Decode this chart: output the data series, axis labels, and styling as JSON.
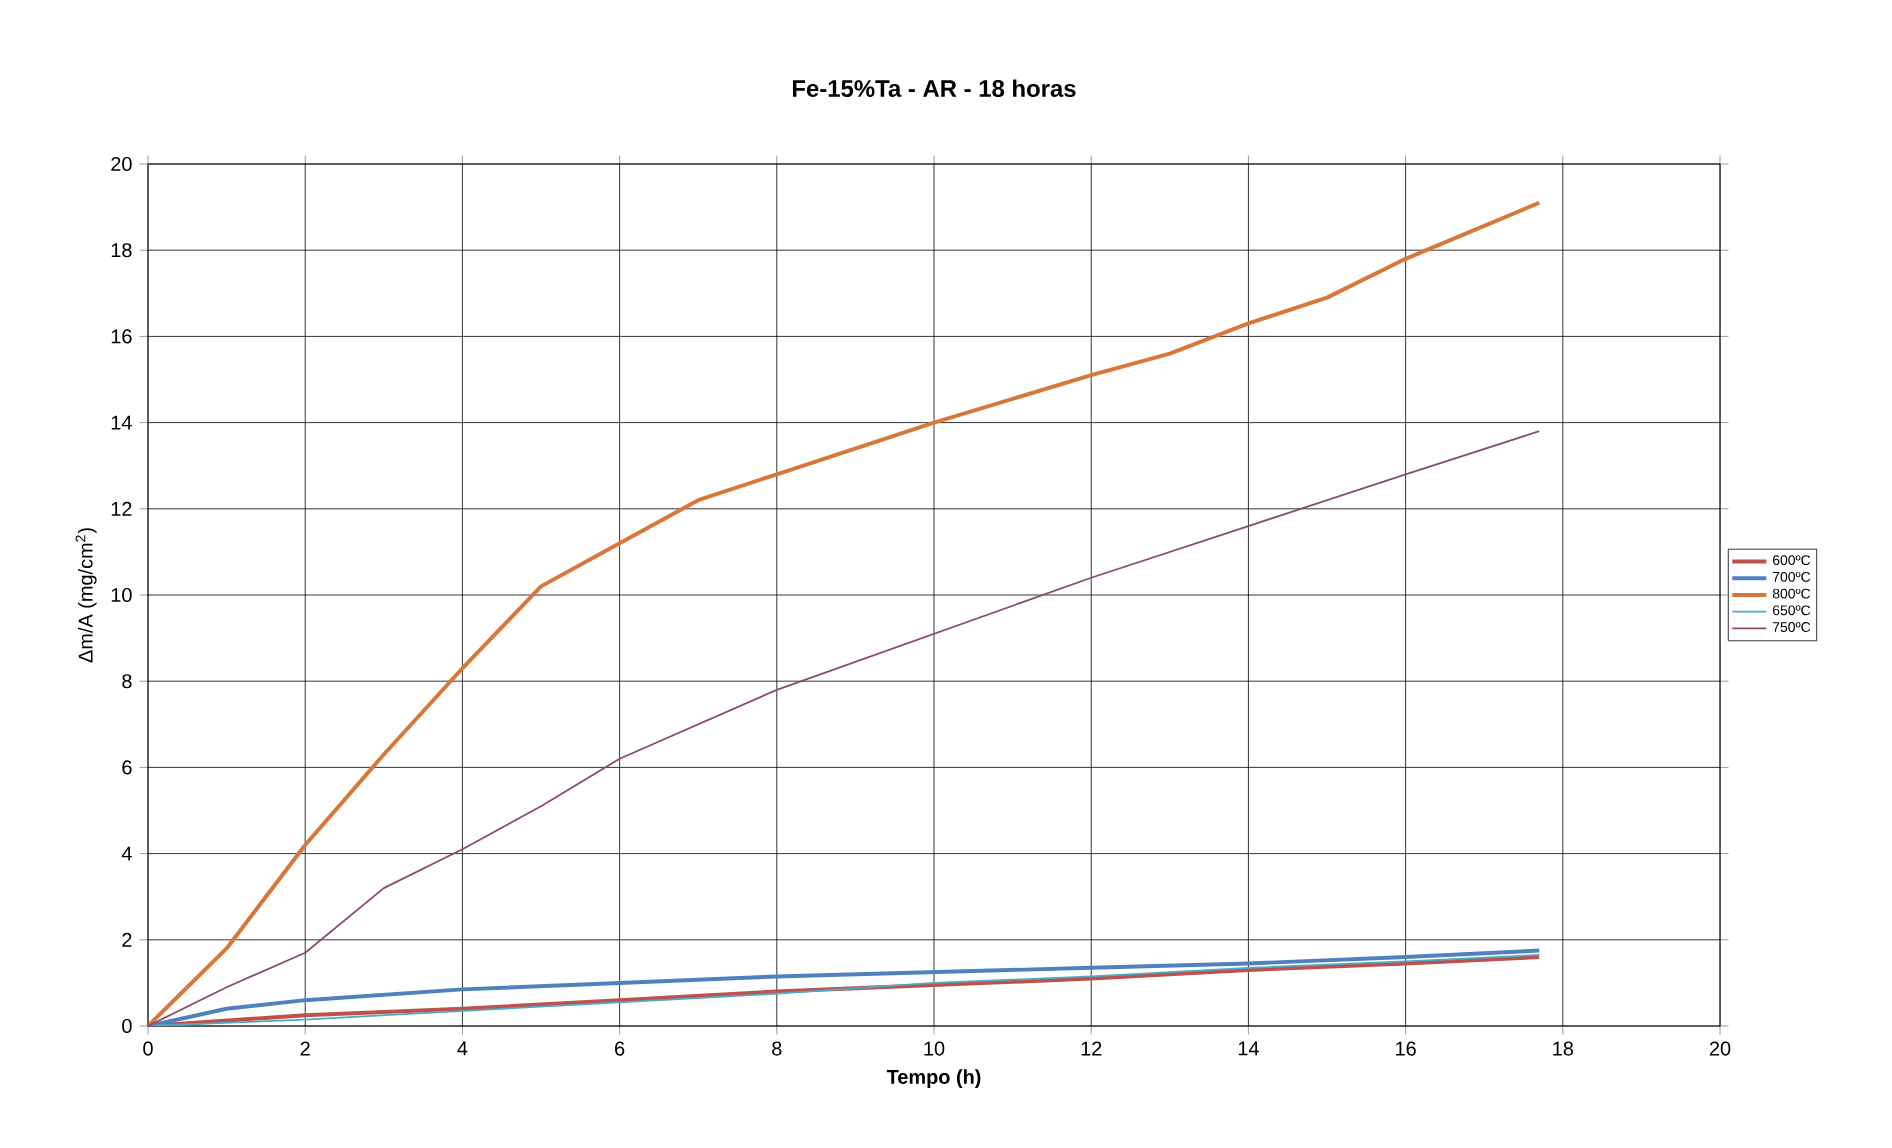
{
  "chart_data": {
    "type": "line",
    "title": "Fe-15%Ta - AR - 18 horas",
    "xlabel": "Tempo (h)",
    "ylabel": "Δm/A (mg/cm$^{2}$)",
    "xlim": [
      0,
      20
    ],
    "ylim": [
      0,
      20
    ],
    "xticks": [
      0,
      2,
      4,
      6,
      8,
      10,
      12,
      14,
      16,
      18,
      20
    ],
    "yticks": [
      0,
      2,
      4,
      6,
      8,
      10,
      12,
      14,
      16,
      18,
      20
    ],
    "grid": true,
    "legend": "right",
    "marker": "none",
    "line_style": "solid",
    "series": [
      {
        "name": "600ºC",
        "color": "#c0504d",
        "x": [
          0,
          2,
          4,
          6,
          8,
          10,
          12,
          14,
          16,
          17.7
        ],
        "values": [
          0,
          0.25,
          0.4,
          0.6,
          0.8,
          0.95,
          1.1,
          1.3,
          1.45,
          1.6
        ]
      },
      {
        "name": "700ºC",
        "color": "#4f81bd",
        "x": [
          0,
          1,
          2,
          4,
          6,
          8,
          10,
          12,
          14,
          16,
          17.7
        ],
        "values": [
          0,
          0.4,
          0.6,
          0.85,
          1.0,
          1.15,
          1.25,
          1.35,
          1.45,
          1.6,
          1.75
        ]
      },
      {
        "name": "800ºC",
        "color": "#d9773a",
        "x": [
          0,
          1,
          2,
          3,
          4,
          5,
          6,
          7,
          8,
          10,
          12,
          13,
          14,
          15,
          16,
          17.7
        ],
        "values": [
          0,
          1.8,
          4.2,
          6.3,
          8.3,
          10.2,
          11.2,
          12.2,
          12.8,
          14,
          15.1,
          15.6,
          16.3,
          16.9,
          17.8,
          19.1
        ]
      },
      {
        "name": "650ºC",
        "color": "#4bacc6",
        "x": [
          0,
          2,
          4,
          6,
          8,
          10,
          12,
          14,
          16,
          17.7
        ],
        "values": [
          0,
          0.15,
          0.35,
          0.55,
          0.75,
          1.0,
          1.15,
          1.35,
          1.5,
          1.65
        ]
      },
      {
        "name": "750ºC",
        "color": "#8b4a6b",
        "x": [
          0,
          1,
          2,
          3,
          4,
          5,
          6,
          8,
          10,
          12,
          14,
          16,
          17.7
        ],
        "values": [
          0,
          0.9,
          1.7,
          3.2,
          4.1,
          5.1,
          6.2,
          7.8,
          9.1,
          10.4,
          11.6,
          12.8,
          13.8
        ]
      }
    ]
  }
}
